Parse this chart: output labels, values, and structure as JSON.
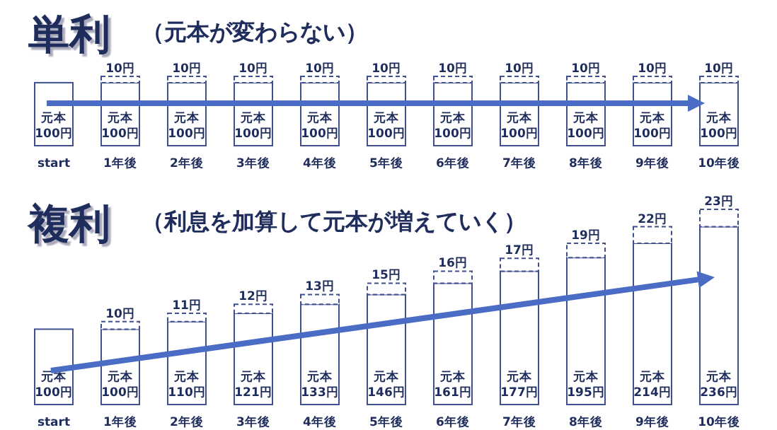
{
  "chart_data": [
    {
      "type": "bar",
      "stacked": true,
      "title": "単利",
      "subtitle": "（元本が変わらない）",
      "categories": [
        "start",
        "1年後",
        "2年後",
        "3年後",
        "4年後",
        "5年後",
        "6年後",
        "7年後",
        "8年後",
        "9年後",
        "10年後"
      ],
      "series": [
        {
          "color": "#3f4f8f",
          "values": [
            100,
            100,
            100,
            100,
            100,
            100,
            100,
            100,
            100,
            100,
            100
          ],
          "value_labels": [
            "元本 100円",
            "元本 100円",
            "元本 100円",
            "元本 100円",
            "元本 100円",
            "元本 100円",
            "元本 100円",
            "元本 100円",
            "元本 100円",
            "元本 100円",
            "元本 100円"
          ]
        },
        {
          "color": "#3f4f8f",
          "line_style": "dashed",
          "values": [
            null,
            10,
            10,
            10,
            10,
            10,
            10,
            10,
            10,
            10,
            10
          ],
          "value_labels": [
            null,
            "10円",
            "10円",
            "10円",
            "10円",
            "10円",
            "10円",
            "10円",
            "10円",
            "10円",
            "10円"
          ]
        }
      ]
    },
    {
      "type": "bar",
      "stacked": true,
      "title": "複利",
      "subtitle": "（利息を加算して元本が増えていく）",
      "categories": [
        "start",
        "1年後",
        "2年後",
        "3年後",
        "4年後",
        "5年後",
        "6年後",
        "7年後",
        "8年後",
        "9年後",
        "10年後"
      ],
      "series": [
        {
          "color": "#3f4f8f",
          "values": [
            100,
            100,
            110,
            121,
            133,
            146,
            161,
            177,
            195,
            214,
            236
          ],
          "value_labels": [
            "元本 100円",
            "元本 100円",
            "元本 110円",
            "元本 121円",
            "元本 133円",
            "元本 146円",
            "元本 161円",
            "元本 177円",
            "元本 195円",
            "元本 214円",
            "元本 236円"
          ]
        },
        {
          "color": "#3f4f8f",
          "line_style": "dashed",
          "values": [
            null,
            10,
            11,
            12,
            13,
            15,
            16,
            17,
            19,
            22,
            23
          ],
          "value_labels": [
            null,
            "10円",
            "11円",
            "12円",
            "13円",
            "15円",
            "16円",
            "17円",
            "19円",
            "22円",
            "23円"
          ]
        }
      ]
    }
  ]
}
